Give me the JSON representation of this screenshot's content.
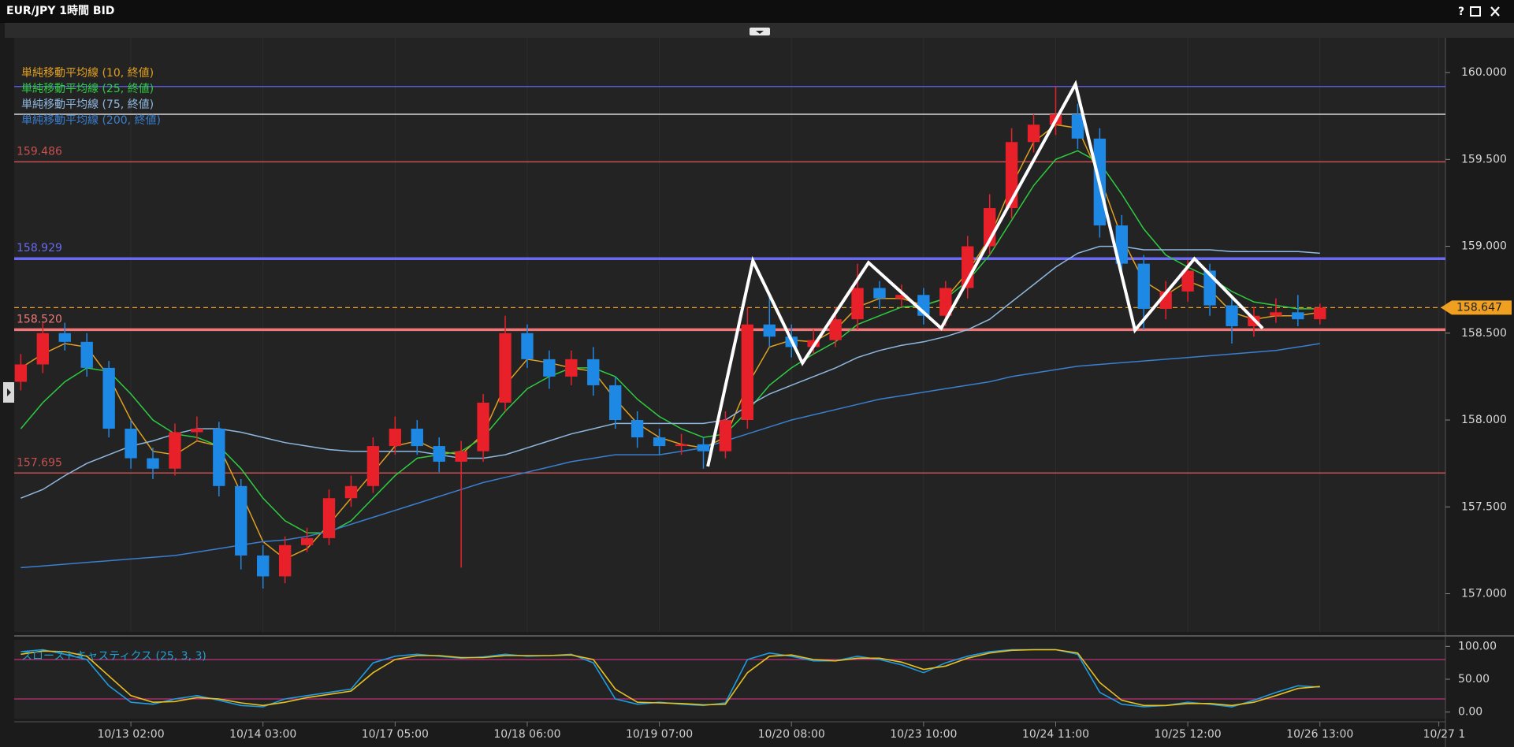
{
  "chart_data": {
    "type": "candlestick",
    "title": "EUR/JPY 1時間 BID",
    "help": "?",
    "up_color": "#e8202a",
    "down_color": "#1e88e5",
    "ylim": [
      156.78,
      160.2
    ],
    "yticks": [
      {
        "value": 157,
        "label": "157.000"
      },
      {
        "value": 157.5,
        "label": "157.500"
      },
      {
        "value": 158,
        "label": "158.000"
      },
      {
        "value": 158.5,
        "label": "158.500"
      },
      {
        "value": 159,
        "label": "159.000"
      },
      {
        "value": 159.5,
        "label": "159.500"
      },
      {
        "value": 160,
        "label": "160.000"
      }
    ],
    "xlim": [
      -0.3,
      64.7
    ],
    "xticks": [
      {
        "value": 5,
        "label": "10/13 02:00"
      },
      {
        "value": 11,
        "label": "10/14 03:00"
      },
      {
        "value": 17,
        "label": "10/17 05:00"
      },
      {
        "value": 23,
        "label": "10/18 06:00"
      },
      {
        "value": 29,
        "label": "10/19 07:00"
      },
      {
        "value": 35,
        "label": "10/20 08:00"
      },
      {
        "value": 41,
        "label": "10/23 10:00"
      },
      {
        "value": 47,
        "label": "10/24 11:00"
      },
      {
        "value": 53,
        "label": "10/25 12:00"
      },
      {
        "value": 59,
        "label": "10/26 13:00"
      },
      {
        "value": 64.4,
        "label": "10/27 1"
      }
    ],
    "open": [
      158.22,
      158.32,
      158.5,
      158.45,
      158.3,
      157.95,
      157.78,
      157.72,
      157.93,
      157.95,
      157.62,
      157.22,
      157.1,
      157.28,
      157.32,
      157.55,
      157.62,
      157.85,
      157.95,
      157.85,
      157.76,
      157.82,
      158.1,
      158.5,
      158.35,
      158.25,
      158.35,
      158.2,
      158.0,
      157.9,
      157.85,
      157.86,
      157.82,
      158.0,
      158.55,
      158.48,
      158.42,
      158.46,
      158.58,
      158.76,
      158.7,
      158.72,
      158.6,
      158.76,
      159.0,
      159.22,
      159.6,
      159.7,
      159.76,
      159.62,
      159.12,
      158.9,
      158.64,
      158.74,
      158.86,
      158.66,
      158.54,
      158.6,
      158.62,
      158.58
    ],
    "high": [
      158.38,
      158.56,
      158.56,
      158.5,
      158.34,
      158.0,
      157.84,
      157.98,
      158.02,
      157.99,
      157.66,
      157.28,
      157.33,
      157.38,
      157.6,
      157.68,
      157.9,
      158.02,
      158.0,
      157.9,
      157.88,
      158.15,
      158.6,
      158.55,
      158.4,
      158.4,
      158.42,
      158.25,
      158.05,
      157.95,
      157.92,
      157.9,
      158.05,
      158.65,
      158.72,
      158.55,
      158.52,
      158.65,
      158.9,
      158.8,
      158.78,
      158.76,
      158.8,
      159.06,
      159.3,
      159.68,
      159.76,
      159.92,
      159.82,
      159.68,
      159.18,
      158.95,
      158.8,
      158.92,
      158.9,
      158.7,
      158.65,
      158.7,
      158.72,
      158.67
    ],
    "low": [
      158.17,
      158.27,
      158.4,
      158.25,
      157.9,
      157.72,
      157.66,
      157.68,
      157.88,
      157.56,
      157.14,
      157.03,
      157.06,
      157.24,
      157.28,
      157.5,
      157.58,
      157.8,
      157.8,
      157.7,
      157.15,
      157.76,
      158.05,
      158.3,
      158.18,
      158.2,
      158.14,
      157.95,
      157.84,
      157.8,
      157.8,
      157.72,
      157.78,
      157.95,
      158.42,
      158.36,
      158.38,
      158.42,
      158.52,
      158.64,
      158.65,
      158.55,
      158.54,
      158.7,
      158.95,
      159.16,
      159.54,
      159.64,
      159.56,
      159.05,
      158.84,
      158.52,
      158.58,
      158.68,
      158.6,
      158.44,
      158.48,
      158.56,
      158.54,
      158.55
    ],
    "close": [
      158.32,
      158.5,
      158.45,
      158.3,
      157.95,
      157.78,
      157.72,
      157.93,
      157.95,
      157.62,
      157.22,
      157.1,
      157.28,
      157.32,
      157.55,
      157.62,
      157.85,
      157.95,
      157.85,
      157.76,
      157.82,
      158.1,
      158.5,
      158.35,
      158.25,
      158.35,
      158.2,
      158.0,
      157.9,
      157.85,
      157.86,
      157.82,
      158.0,
      158.55,
      158.48,
      158.42,
      158.46,
      158.58,
      158.76,
      158.7,
      158.72,
      158.6,
      158.76,
      159.0,
      159.22,
      159.6,
      159.7,
      159.76,
      159.62,
      159.12,
      158.9,
      158.64,
      158.74,
      158.86,
      158.66,
      158.54,
      158.6,
      158.62,
      158.58,
      158.647
    ],
    "series": [
      {
        "name": "単純移動平均線 (10, 終値)",
        "color": "#e0a020",
        "values": [
          158.3,
          158.38,
          158.44,
          158.42,
          158.25,
          158.0,
          157.82,
          157.8,
          157.88,
          157.85,
          157.58,
          157.3,
          157.2,
          157.26,
          157.4,
          157.55,
          157.7,
          157.85,
          157.88,
          157.82,
          157.8,
          157.92,
          158.2,
          158.35,
          158.33,
          158.3,
          158.28,
          158.12,
          157.98,
          157.9,
          157.86,
          157.84,
          157.9,
          158.2,
          158.42,
          158.46,
          158.45,
          158.52,
          158.65,
          158.7,
          158.7,
          158.66,
          158.7,
          158.85,
          159.05,
          159.35,
          159.6,
          159.7,
          159.68,
          159.4,
          159.05,
          158.8,
          158.72,
          158.8,
          158.75,
          158.62,
          158.58,
          158.6,
          158.6,
          158.62
        ]
      },
      {
        "name": "単純移動平均線 (25, 終値)",
        "color": "#2ecc40",
        "values": [
          157.95,
          158.1,
          158.22,
          158.3,
          158.28,
          158.15,
          158.0,
          157.92,
          157.9,
          157.85,
          157.72,
          157.55,
          157.42,
          157.35,
          157.35,
          157.42,
          157.55,
          157.68,
          157.78,
          157.8,
          157.82,
          157.9,
          158.05,
          158.18,
          158.25,
          158.3,
          158.3,
          158.25,
          158.12,
          158.02,
          157.95,
          157.9,
          157.92,
          158.05,
          158.2,
          158.3,
          158.38,
          158.45,
          158.55,
          158.6,
          158.65,
          158.66,
          158.7,
          158.8,
          158.95,
          159.15,
          159.35,
          159.5,
          159.55,
          159.48,
          159.3,
          159.1,
          158.95,
          158.88,
          158.82,
          158.74,
          158.68,
          158.66,
          158.64,
          158.64
        ]
      },
      {
        "name": "単純移動平均線 (75, 終値)",
        "color": "#8fb8e0",
        "values": [
          157.55,
          157.6,
          157.68,
          157.75,
          157.8,
          157.85,
          157.88,
          157.92,
          157.95,
          157.95,
          157.93,
          157.9,
          157.87,
          157.85,
          157.83,
          157.82,
          157.82,
          157.82,
          157.82,
          157.8,
          157.78,
          157.78,
          157.8,
          157.84,
          157.88,
          157.92,
          157.95,
          157.98,
          157.98,
          157.98,
          157.98,
          157.98,
          158.0,
          158.08,
          158.15,
          158.2,
          158.25,
          158.3,
          158.36,
          158.4,
          158.43,
          158.45,
          158.48,
          158.52,
          158.58,
          158.68,
          158.78,
          158.88,
          158.96,
          159.0,
          159.0,
          158.98,
          158.98,
          158.98,
          158.98,
          158.97,
          158.97,
          158.97,
          158.97,
          158.96
        ]
      },
      {
        "name": "単純移動平均線 (200, 終値)",
        "color": "#3a7fd0",
        "values": [
          157.15,
          157.16,
          157.17,
          157.18,
          157.19,
          157.2,
          157.21,
          157.22,
          157.24,
          157.26,
          157.28,
          157.3,
          157.31,
          157.33,
          157.36,
          157.4,
          157.44,
          157.48,
          157.52,
          157.56,
          157.6,
          157.64,
          157.67,
          157.7,
          157.73,
          157.76,
          157.78,
          157.8,
          157.8,
          157.8,
          157.82,
          157.84,
          157.88,
          157.92,
          157.96,
          158.0,
          158.03,
          158.06,
          158.09,
          158.12,
          158.14,
          158.16,
          158.18,
          158.2,
          158.22,
          158.25,
          158.27,
          158.29,
          158.31,
          158.32,
          158.33,
          158.34,
          158.35,
          158.36,
          158.37,
          158.38,
          158.39,
          158.4,
          158.42,
          158.44
        ]
      }
    ],
    "levels": [
      {
        "value": 159.92,
        "color": "#5a5ad0",
        "width": 1.5
      },
      {
        "value": 159.76,
        "color": "#d8d8d8",
        "width": 1.5
      },
      {
        "value": 159.486,
        "color": "#c85050",
        "width": 1.5
      },
      {
        "value": 158.929,
        "color": "#6a6af0",
        "width": 3.5
      },
      {
        "value": 158.647,
        "color": "#f0a020",
        "width": 1.2,
        "dashed": true,
        "tag": true
      },
      {
        "value": 158.52,
        "label": "158.520",
        "color": "#f07878",
        "width": 3.5
      },
      {
        "value": 157.695,
        "color": "#c85050",
        "width": 1.5
      }
    ],
    "zigzag": {
      "color": "#ffffff",
      "x": [
        31.2,
        33.25,
        35.5,
        38.5,
        41.8,
        47.9,
        50.6,
        53.3,
        56.4
      ],
      "y": [
        157.733,
        158.917,
        158.328,
        158.906,
        158.528,
        159.933,
        158.517,
        158.928,
        158.528
      ]
    },
    "indicator": {
      "type": "line",
      "name": "スローストキャスティクス (25, 3, 3)",
      "name_color": "#20a0d0",
      "ylim": [
        -10,
        110
      ],
      "yticks": [
        {
          "value": 0,
          "label": "0.00"
        },
        {
          "value": 50,
          "label": "50.00"
        },
        {
          "value": 100,
          "label": "100.00"
        }
      ],
      "levels": [
        {
          "value": 20,
          "color": "#c0307a"
        },
        {
          "value": 80,
          "color": "#c0307a"
        }
      ],
      "series": [
        {
          "color": "#1e9be0",
          "values": [
            92,
            95,
            88,
            80,
            40,
            15,
            12,
            20,
            25,
            18,
            10,
            8,
            20,
            25,
            30,
            35,
            75,
            85,
            88,
            85,
            82,
            84,
            88,
            85,
            86,
            88,
            75,
            20,
            12,
            15,
            12,
            10,
            14,
            80,
            90,
            85,
            78,
            78,
            85,
            80,
            72,
            60,
            75,
            85,
            92,
            95,
            95,
            95,
            88,
            30,
            12,
            8,
            10,
            15,
            12,
            8,
            18,
            30,
            40,
            38
          ]
        },
        {
          "color": "#e8c020",
          "values": [
            88,
            93,
            92,
            85,
            55,
            25,
            15,
            16,
            22,
            20,
            14,
            10,
            15,
            22,
            27,
            32,
            60,
            80,
            86,
            86,
            83,
            83,
            86,
            86,
            86,
            87,
            80,
            35,
            15,
            14,
            13,
            11,
            12,
            60,
            85,
            87,
            80,
            78,
            82,
            82,
            76,
            65,
            70,
            82,
            90,
            94,
            95,
            95,
            90,
            45,
            18,
            10,
            10,
            13,
            13,
            10,
            15,
            25,
            36,
            39
          ]
        }
      ]
    }
  }
}
